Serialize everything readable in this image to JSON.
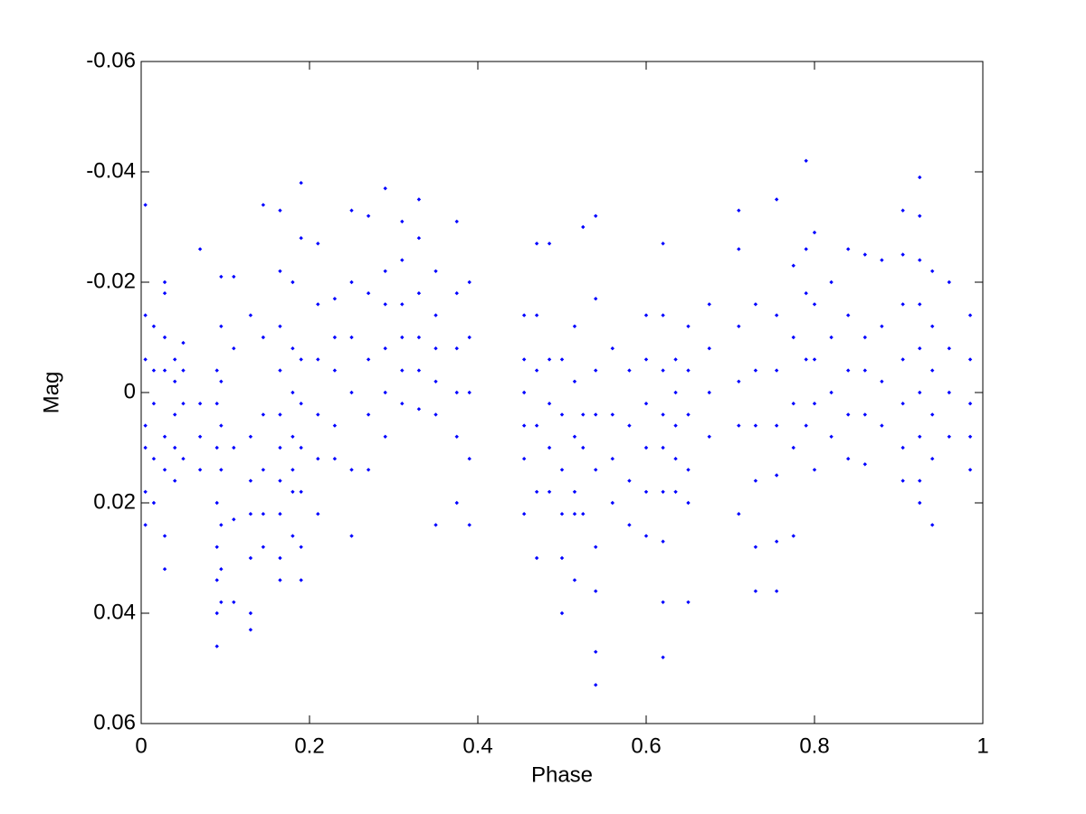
{
  "chart_data": {
    "type": "scatter",
    "xlabel": "Phase",
    "ylabel": "Mag",
    "xlim": [
      0,
      1
    ],
    "xticks": [
      0,
      0.2,
      0.4,
      0.6,
      0.8,
      1
    ],
    "ylim": [
      -0.06,
      0.06
    ],
    "yticks": [
      -0.06,
      -0.04,
      -0.02,
      0,
      0.02,
      0.04,
      0.06
    ],
    "y_reversed": true,
    "color": "#0000ff",
    "x": [
      0.005,
      0.005,
      0.005,
      0.005,
      0.005,
      0.005,
      0.005,
      0.015,
      0.015,
      0.015,
      0.015,
      0.015,
      0.028,
      0.028,
      0.028,
      0.028,
      0.028,
      0.028,
      0.028,
      0.028,
      0.04,
      0.04,
      0.04,
      0.04,
      0.04,
      0.05,
      0.05,
      0.05,
      0.05,
      0.07,
      0.07,
      0.07,
      0.07,
      0.09,
      0.09,
      0.09,
      0.09,
      0.09,
      0.09,
      0.09,
      0.09,
      0.095,
      0.095,
      0.095,
      0.095,
      0.095,
      0.095,
      0.095,
      0.095,
      0.11,
      0.11,
      0.11,
      0.11,
      0.11,
      0.13,
      0.13,
      0.13,
      0.13,
      0.13,
      0.13,
      0.13,
      0.145,
      0.145,
      0.145,
      0.145,
      0.145,
      0.145,
      0.165,
      0.165,
      0.165,
      0.165,
      0.165,
      0.165,
      0.165,
      0.165,
      0.165,
      0.165,
      0.18,
      0.18,
      0.18,
      0.18,
      0.18,
      0.18,
      0.18,
      0.19,
      0.19,
      0.19,
      0.19,
      0.19,
      0.19,
      0.19,
      0.19,
      0.21,
      0.21,
      0.21,
      0.21,
      0.21,
      0.21,
      0.23,
      0.23,
      0.23,
      0.23,
      0.23,
      0.25,
      0.25,
      0.25,
      0.25,
      0.25,
      0.25,
      0.27,
      0.27,
      0.27,
      0.27,
      0.27,
      0.29,
      0.29,
      0.29,
      0.29,
      0.29,
      0.29,
      0.31,
      0.31,
      0.31,
      0.31,
      0.31,
      0.31,
      0.33,
      0.33,
      0.33,
      0.33,
      0.33,
      0.33,
      0.35,
      0.35,
      0.35,
      0.35,
      0.35,
      0.35,
      0.375,
      0.375,
      0.375,
      0.375,
      0.375,
      0.375,
      0.39,
      0.39,
      0.39,
      0.39,
      0.39,
      0.455,
      0.455,
      0.455,
      0.455,
      0.455,
      0.455,
      0.47,
      0.47,
      0.47,
      0.47,
      0.47,
      0.47,
      0.485,
      0.485,
      0.485,
      0.485,
      0.485,
      0.5,
      0.5,
      0.5,
      0.5,
      0.5,
      0.5,
      0.515,
      0.515,
      0.515,
      0.515,
      0.515,
      0.515,
      0.525,
      0.525,
      0.525,
      0.525,
      0.54,
      0.54,
      0.54,
      0.54,
      0.54,
      0.54,
      0.54,
      0.54,
      0.54,
      0.56,
      0.56,
      0.56,
      0.56,
      0.58,
      0.58,
      0.58,
      0.58,
      0.6,
      0.6,
      0.6,
      0.6,
      0.6,
      0.6,
      0.62,
      0.62,
      0.62,
      0.62,
      0.62,
      0.62,
      0.62,
      0.62,
      0.62,
      0.635,
      0.635,
      0.635,
      0.635,
      0.635,
      0.65,
      0.65,
      0.65,
      0.65,
      0.65,
      0.65,
      0.675,
      0.675,
      0.675,
      0.675,
      0.71,
      0.71,
      0.71,
      0.71,
      0.71,
      0.71,
      0.73,
      0.73,
      0.73,
      0.73,
      0.73,
      0.73,
      0.755,
      0.755,
      0.755,
      0.755,
      0.755,
      0.755,
      0.755,
      0.775,
      0.775,
      0.775,
      0.775,
      0.775,
      0.79,
      0.79,
      0.79,
      0.79,
      0.79,
      0.8,
      0.8,
      0.8,
      0.8,
      0.8,
      0.82,
      0.82,
      0.82,
      0.82,
      0.84,
      0.84,
      0.84,
      0.84,
      0.84,
      0.86,
      0.86,
      0.86,
      0.86,
      0.86,
      0.88,
      0.88,
      0.88,
      0.88,
      0.905,
      0.905,
      0.905,
      0.905,
      0.905,
      0.905,
      0.905,
      0.925,
      0.925,
      0.925,
      0.925,
      0.925,
      0.925,
      0.925,
      0.925,
      0.925,
      0.94,
      0.94,
      0.94,
      0.94,
      0.94,
      0.94,
      0.96,
      0.96,
      0.96,
      0.96,
      0.985,
      0.985,
      0.985,
      0.985,
      0.985
    ],
    "values": [
      -0.034,
      -0.014,
      -0.006,
      0.006,
      0.01,
      0.018,
      0.024,
      -0.012,
      -0.004,
      0.002,
      0.012,
      0.02,
      -0.02,
      -0.018,
      -0.01,
      -0.004,
      0.008,
      0.014,
      0.026,
      0.032,
      -0.006,
      -0.002,
      0.004,
      0.01,
      0.016,
      -0.009,
      -0.004,
      0.002,
      0.012,
      -0.026,
      0.002,
      0.008,
      0.014,
      -0.004,
      0.002,
      0.01,
      0.02,
      0.028,
      0.034,
      0.04,
      0.046,
      -0.021,
      -0.012,
      -0.002,
      0.006,
      0.014,
      0.024,
      0.032,
      0.038,
      -0.021,
      -0.008,
      0.01,
      0.023,
      0.038,
      -0.014,
      0.008,
      0.016,
      0.022,
      0.03,
      0.04,
      0.043,
      -0.034,
      -0.01,
      0.004,
      0.014,
      0.022,
      0.028,
      -0.033,
      -0.022,
      -0.012,
      -0.004,
      0.004,
      0.01,
      0.016,
      0.022,
      0.03,
      0.034,
      -0.02,
      -0.008,
      0.0,
      0.008,
      0.014,
      0.018,
      0.026,
      -0.038,
      -0.028,
      -0.006,
      0.002,
      0.01,
      0.018,
      0.028,
      0.034,
      -0.027,
      -0.016,
      -0.006,
      0.004,
      0.012,
      0.022,
      -0.017,
      -0.01,
      -0.004,
      0.006,
      0.012,
      -0.033,
      -0.02,
      -0.01,
      0.0,
      0.014,
      0.026,
      -0.032,
      -0.018,
      -0.006,
      0.004,
      0.014,
      -0.037,
      -0.022,
      -0.016,
      -0.008,
      0.0,
      0.008,
      -0.031,
      -0.024,
      -0.016,
      -0.01,
      -0.004,
      0.002,
      -0.035,
      -0.028,
      -0.018,
      -0.01,
      -0.004,
      0.003,
      -0.022,
      -0.014,
      -0.008,
      -0.002,
      0.004,
      0.024,
      -0.031,
      -0.018,
      -0.008,
      0.0,
      0.008,
      0.02,
      -0.02,
      -0.01,
      0.0,
      0.012,
      0.024,
      -0.014,
      -0.006,
      0.0,
      0.006,
      0.012,
      0.022,
      -0.027,
      -0.014,
      -0.004,
      0.006,
      0.018,
      0.03,
      -0.027,
      -0.006,
      0.002,
      0.01,
      0.018,
      -0.006,
      0.004,
      0.014,
      0.022,
      0.03,
      0.04,
      -0.012,
      -0.002,
      0.008,
      0.018,
      0.022,
      0.034,
      -0.03,
      0.004,
      0.01,
      0.022,
      -0.032,
      -0.017,
      -0.004,
      0.004,
      0.014,
      0.028,
      0.036,
      0.047,
      0.053,
      -0.008,
      0.004,
      0.012,
      0.02,
      -0.004,
      0.006,
      0.016,
      0.024,
      -0.014,
      -0.006,
      0.002,
      0.01,
      0.018,
      0.026,
      -0.027,
      -0.014,
      -0.004,
      0.004,
      0.01,
      0.018,
      0.027,
      0.038,
      0.048,
      -0.006,
      0.0,
      0.006,
      0.012,
      0.018,
      -0.012,
      -0.004,
      0.004,
      0.014,
      0.02,
      0.038,
      -0.016,
      -0.008,
      0.0,
      0.008,
      -0.033,
      -0.026,
      -0.012,
      -0.002,
      0.006,
      0.022,
      -0.016,
      -0.004,
      0.006,
      0.016,
      0.028,
      0.036,
      -0.035,
      -0.014,
      -0.004,
      0.006,
      0.015,
      0.027,
      0.036,
      -0.023,
      -0.01,
      0.002,
      0.01,
      0.026,
      -0.042,
      -0.026,
      -0.018,
      -0.006,
      0.006,
      -0.029,
      -0.016,
      -0.006,
      0.002,
      0.014,
      -0.02,
      -0.01,
      0.0,
      0.008,
      -0.026,
      -0.014,
      -0.004,
      0.004,
      0.012,
      -0.025,
      -0.01,
      -0.004,
      0.004,
      0.013,
      -0.024,
      -0.012,
      -0.002,
      0.006,
      -0.033,
      -0.025,
      -0.016,
      -0.006,
      0.002,
      0.01,
      0.016,
      -0.039,
      -0.032,
      -0.024,
      -0.016,
      -0.008,
      0.0,
      0.008,
      0.016,
      0.02,
      -0.022,
      -0.012,
      -0.004,
      0.004,
      0.012,
      0.024,
      -0.02,
      -0.008,
      0.0,
      0.008,
      -0.014,
      -0.006,
      0.002,
      0.008,
      0.014
    ]
  }
}
